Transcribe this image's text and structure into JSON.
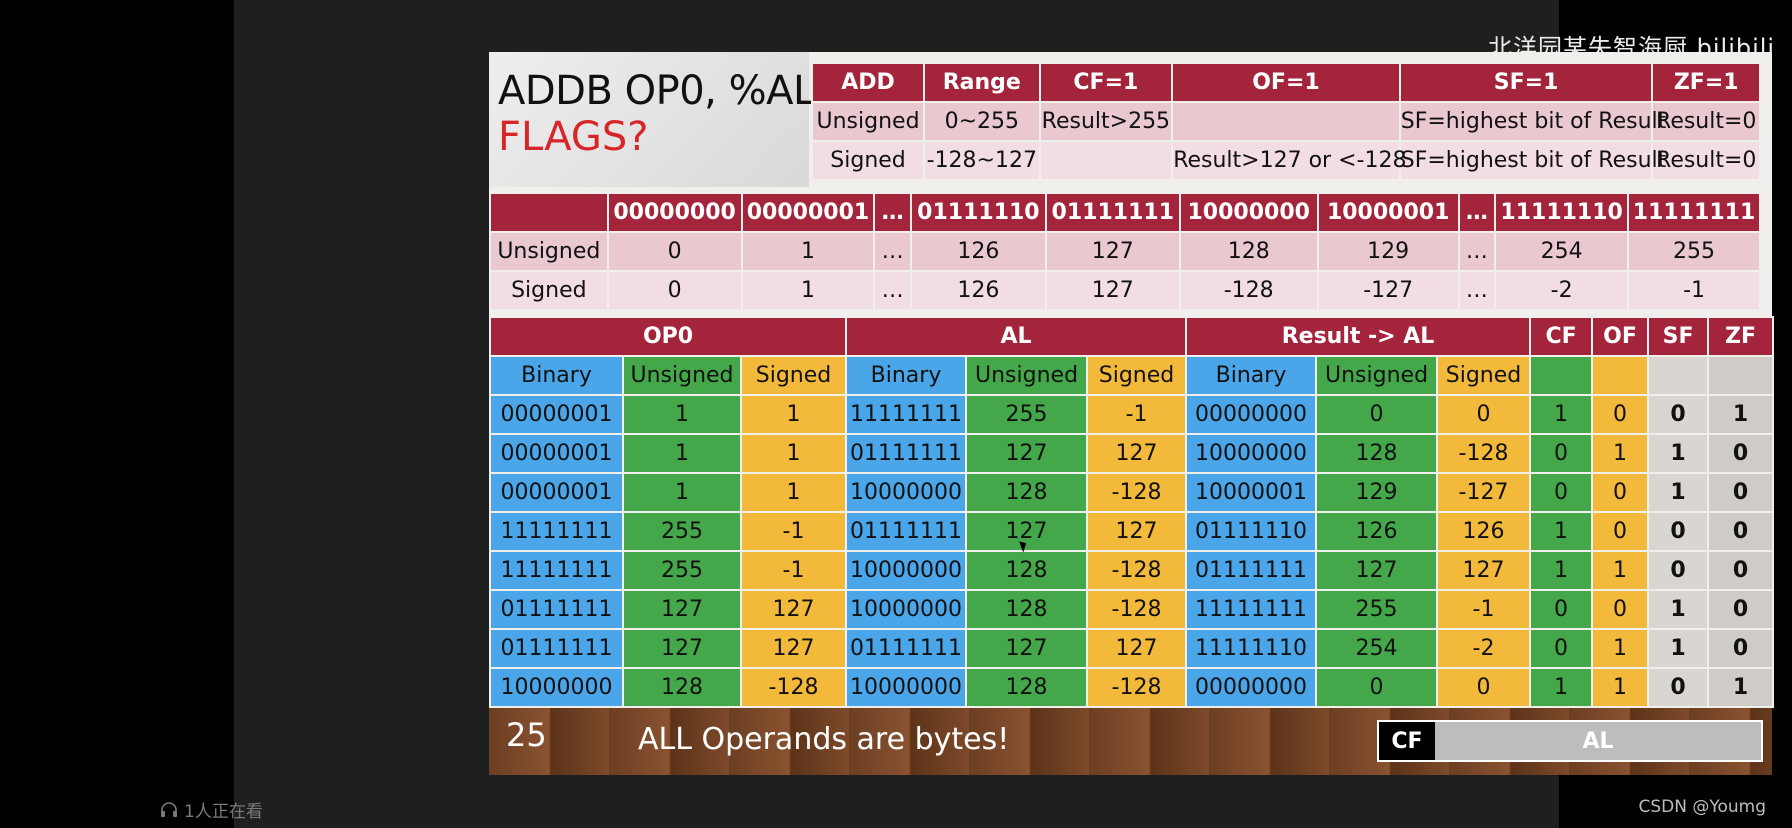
{
  "watermark": "北洋园某失智海厨 bilibili",
  "slide": {
    "title": "ADDB OP0, %AL",
    "subtitle": "FLAGS?",
    "page_number": "25",
    "note": "ALL Operands are bytes!",
    "legend": {
      "cf": "CF",
      "al": "AL"
    }
  },
  "flags_table": {
    "headers": [
      "ADD",
      "Range",
      "CF=1",
      "OF=1",
      "SF=1",
      "ZF=1"
    ],
    "rows": [
      [
        "Unsigned",
        "0~255",
        "Result>255",
        "",
        "SF=highest bit of Result",
        "Result=0"
      ],
      [
        "Signed",
        "-128~127",
        "",
        "Result>127 or <-128",
        "SF=highest bit of Result",
        "Result=0"
      ]
    ]
  },
  "range_table": {
    "headers": [
      "",
      "00000000",
      "00000001",
      "…",
      "01111110",
      "01111111",
      "10000000",
      "10000001",
      "…",
      "11111110",
      "11111111"
    ],
    "rows": [
      [
        "Unsigned",
        "0",
        "1",
        "…",
        "126",
        "127",
        "128",
        "129",
        "…",
        "254",
        "255"
      ],
      [
        "Signed",
        "0",
        "1",
        "…",
        "126",
        "127",
        "-128",
        "-127",
        "…",
        "-2",
        "-1"
      ]
    ]
  },
  "add_table": {
    "groups": [
      "OP0",
      "AL",
      "Result -> AL",
      "CF",
      "OF",
      "SF",
      "ZF"
    ],
    "subheaders": [
      "Binary",
      "Unsigned",
      "Signed",
      "Binary",
      "Unsigned",
      "Signed",
      "Binary",
      "Unsigned",
      "Signed"
    ],
    "rows": [
      [
        "00000001",
        "1",
        "1",
        "11111111",
        "255",
        "-1",
        "00000000",
        "0",
        "0",
        "1",
        "0",
        "0",
        "1"
      ],
      [
        "00000001",
        "1",
        "1",
        "01111111",
        "127",
        "127",
        "10000000",
        "128",
        "-128",
        "0",
        "1",
        "1",
        "0"
      ],
      [
        "00000001",
        "1",
        "1",
        "10000000",
        "128",
        "-128",
        "10000001",
        "129",
        "-127",
        "0",
        "0",
        "1",
        "0"
      ],
      [
        "11111111",
        "255",
        "-1",
        "01111111",
        "127",
        "127",
        "01111110",
        "126",
        "126",
        "1",
        "0",
        "0",
        "0"
      ],
      [
        "11111111",
        "255",
        "-1",
        "10000000",
        "128",
        "-128",
        "01111111",
        "127",
        "127",
        "1",
        "1",
        "0",
        "0"
      ],
      [
        "01111111",
        "127",
        "127",
        "10000000",
        "128",
        "-128",
        "11111111",
        "255",
        "-1",
        "0",
        "0",
        "1",
        "0"
      ],
      [
        "01111111",
        "127",
        "127",
        "01111111",
        "127",
        "127",
        "11111110",
        "254",
        "-2",
        "0",
        "1",
        "1",
        "0"
      ],
      [
        "10000000",
        "128",
        "-128",
        "10000000",
        "128",
        "-128",
        "00000000",
        "0",
        "0",
        "1",
        "1",
        "0",
        "1"
      ]
    ]
  },
  "status": {
    "viewers": "1人正在看",
    "credit": "CSDN @Youmg"
  }
}
